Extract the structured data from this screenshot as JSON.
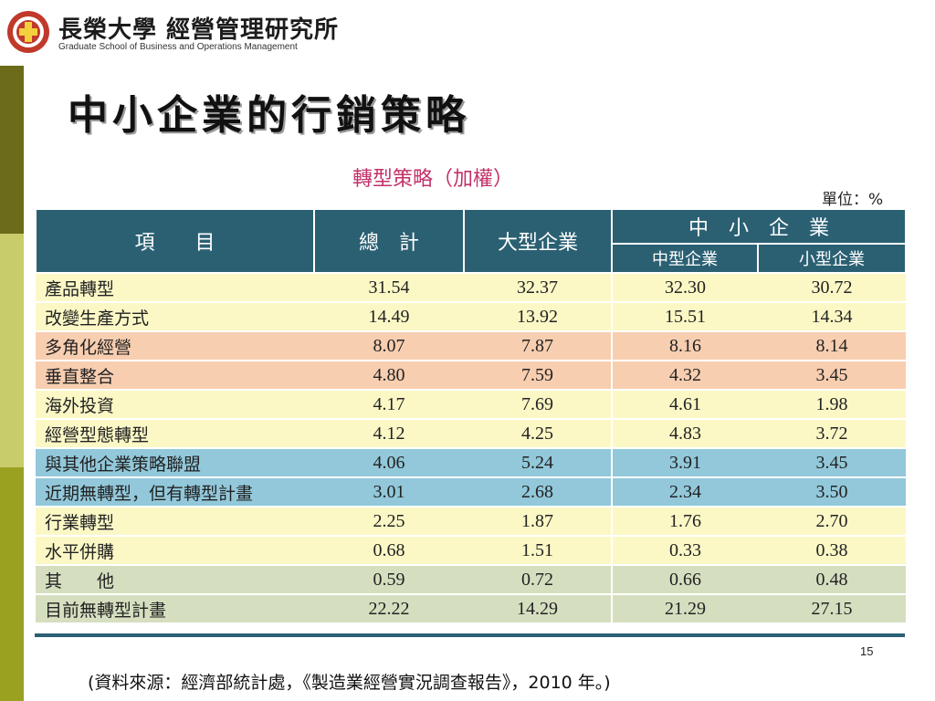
{
  "header": {
    "logo_cn": "長榮大學 經營管理研究所",
    "logo_en": "Graduate School of Business and Operations Management"
  },
  "slide": {
    "title": "中小企業的行銷策略",
    "subtitle": "轉型策略（加權）",
    "unit": "單位：%",
    "page_number": "15",
    "source": "(資料來源：經濟部統計處，《製造業經營實況調查報告》，2010 年。)"
  },
  "table": {
    "headers": {
      "item": "項　　目",
      "total": "總　計",
      "large": "大型企業",
      "sme": "中　小　企　業",
      "medium": "中型企業",
      "small": "小型企業"
    },
    "rows": [
      {
        "label": "產品轉型",
        "total": "31.54",
        "large": "32.37",
        "medium": "32.30",
        "small": "30.72",
        "color": "yellow"
      },
      {
        "label": "改變生產方式",
        "total": "14.49",
        "large": "13.92",
        "medium": "15.51",
        "small": "14.34",
        "color": "yellow"
      },
      {
        "label": "多角化經營",
        "total": "8.07",
        "large": "7.87",
        "medium": "8.16",
        "small": "8.14",
        "color": "orange"
      },
      {
        "label": "垂直整合",
        "total": "4.80",
        "large": "7.59",
        "medium": "4.32",
        "small": "3.45",
        "color": "orange"
      },
      {
        "label": "海外投資",
        "total": "4.17",
        "large": "7.69",
        "medium": "4.61",
        "small": "1.98",
        "color": "yellow"
      },
      {
        "label": "經營型態轉型",
        "total": "4.12",
        "large": "4.25",
        "medium": "4.83",
        "small": "3.72",
        "color": "yellow"
      },
      {
        "label": "與其他企業策略聯盟",
        "total": "4.06",
        "large": "5.24",
        "medium": "3.91",
        "small": "3.45",
        "color": "blue"
      },
      {
        "label": "近期無轉型，但有轉型計畫",
        "total": "3.01",
        "large": "2.68",
        "medium": "2.34",
        "small": "3.50",
        "color": "blue"
      },
      {
        "label": "行業轉型",
        "total": "2.25",
        "large": "1.87",
        "medium": "1.76",
        "small": "2.70",
        "color": "yellow"
      },
      {
        "label": "水平併購",
        "total": "0.68",
        "large": "1.51",
        "medium": "0.33",
        "small": "0.38",
        "color": "yellow"
      },
      {
        "label": "其　　他",
        "total": "0.59",
        "large": "0.72",
        "medium": "0.66",
        "small": "0.48",
        "color": "green"
      },
      {
        "label": "目前無轉型計畫",
        "total": "22.22",
        "large": "14.29",
        "medium": "21.29",
        "small": "27.15",
        "color": "green"
      }
    ]
  }
}
